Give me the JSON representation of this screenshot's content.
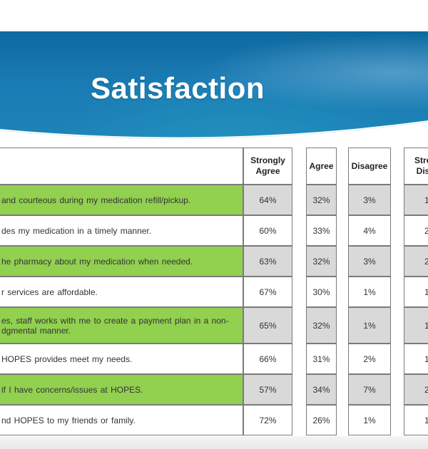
{
  "slide": {
    "title": "Satisfaction"
  },
  "table": {
    "columns": [
      "Strongly Agree",
      "Agree",
      "Disagree",
      "Strongly Disagree"
    ],
    "columns_visible": [
      "Strongly\nAgree",
      "Agree",
      "Disagree",
      "Stro\nDis"
    ],
    "rows": [
      {
        "statement": "and courteous during my medication refill/pickup.",
        "values": [
          "64%",
          "32%",
          "3%",
          "1"
        ]
      },
      {
        "statement": "des my medication in a timely manner.",
        "values": [
          "60%",
          "33%",
          "4%",
          "2"
        ]
      },
      {
        "statement": "he pharmacy about my medication when needed.",
        "values": [
          "63%",
          "32%",
          "3%",
          "2"
        ]
      },
      {
        "statement": "r services are affordable.",
        "values": [
          "67%",
          "30%",
          "1%",
          "1"
        ]
      },
      {
        "statement": "es, staff works with me to create a payment plan in a non-\ndgmental manner.",
        "values": [
          "65%",
          "32%",
          "1%",
          "1"
        ]
      },
      {
        "statement": "HOPES provides meet my needs.",
        "values": [
          "66%",
          "31%",
          "2%",
          "1"
        ]
      },
      {
        "statement": "if I have concerns/issues at HOPES.",
        "values": [
          "57%",
          "34%",
          "7%",
          "2"
        ]
      },
      {
        "statement": "nd HOPES to my friends or family.",
        "values": [
          "72%",
          "26%",
          "1%",
          "1"
        ]
      }
    ]
  },
  "colors": {
    "banner": "#1a7bb3",
    "statement_highlight": "#92d050",
    "value_shade": "#d9d9d9"
  }
}
